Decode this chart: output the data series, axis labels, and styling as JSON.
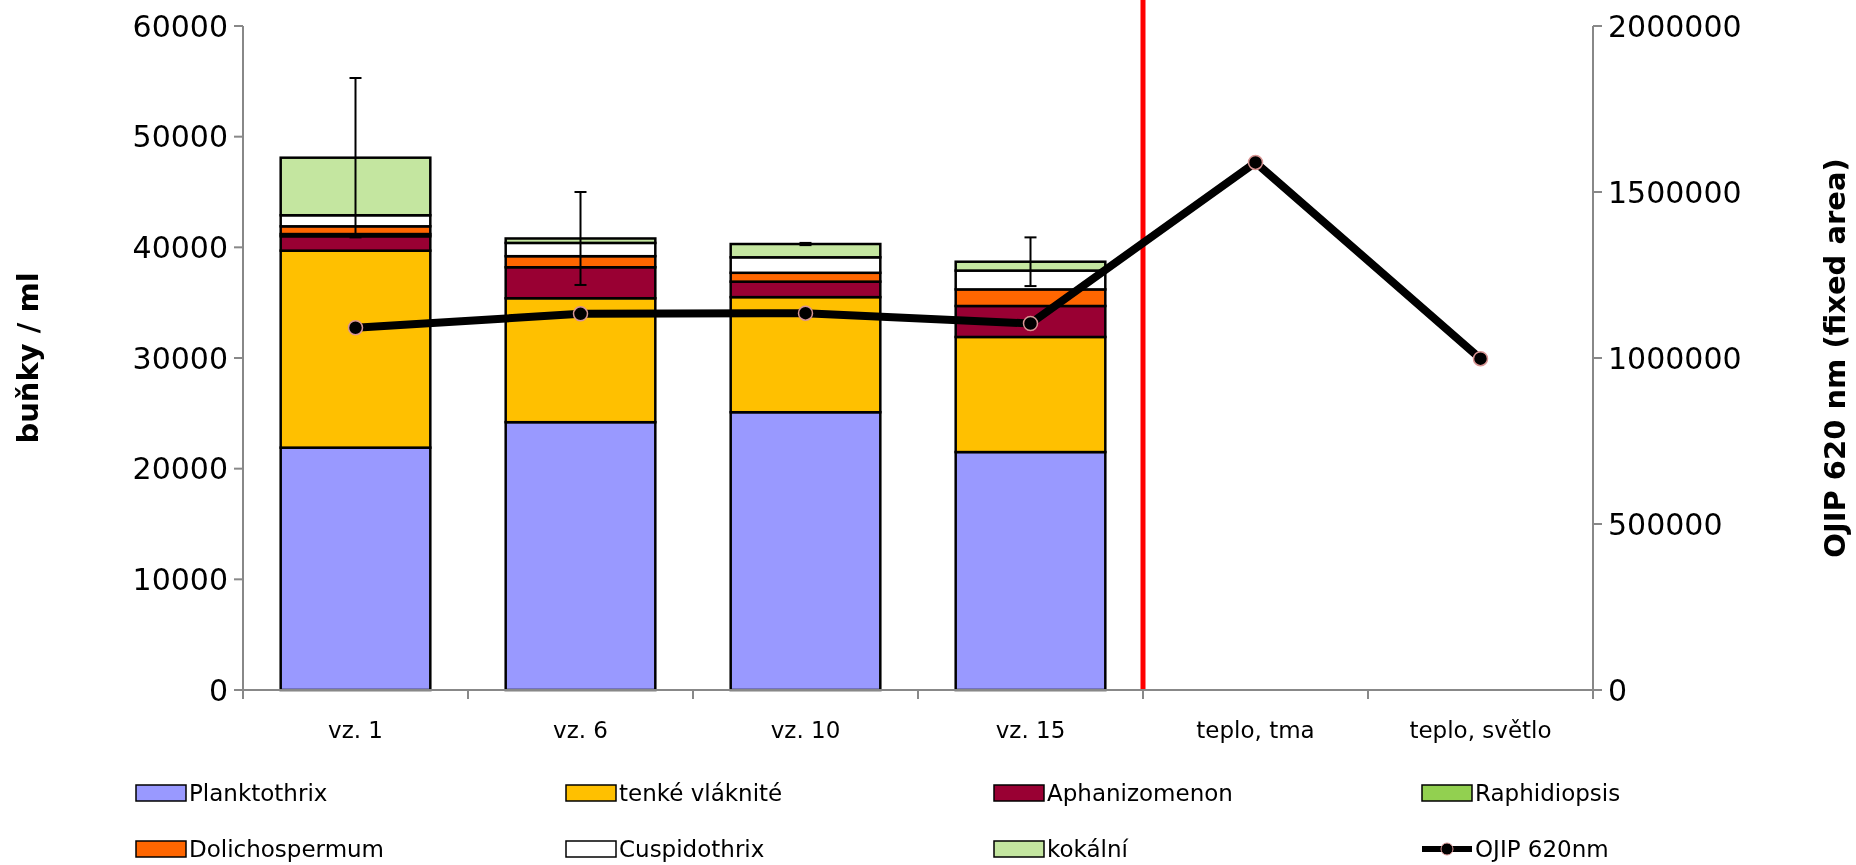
{
  "chart_data": {
    "type": "bar",
    "stacked": true,
    "ylabel": "buňky / ml",
    "y2label": "OJIP 620 nm (fixed area)",
    "categories": [
      "vz. 1",
      "vz. 6",
      "vz. 10",
      "vz. 15",
      "teplo, tma",
      "teplo, světlo"
    ],
    "ylim": [
      0,
      60000
    ],
    "yticks": [
      0,
      10000,
      20000,
      30000,
      40000,
      50000,
      60000
    ],
    "y2lim": [
      0,
      2000000
    ],
    "y2ticks": [
      0,
      500000,
      1000000,
      1500000,
      2000000
    ],
    "series": [
      {
        "name": "Planktothrix",
        "color": "#9999ff",
        "values": [
          21900,
          24200,
          25100,
          21500,
          null,
          null
        ]
      },
      {
        "name": "tenké vláknité",
        "color": "#ffc000",
        "values": [
          17800,
          11200,
          10400,
          10400,
          null,
          null
        ]
      },
      {
        "name": "Aphanizomenon",
        "color": "#990033",
        "values": [
          1300,
          2800,
          1400,
          2800,
          null,
          null
        ]
      },
      {
        "name": "Raphidiopsis",
        "color": "#92d050",
        "values": [
          200,
          0,
          0,
          0,
          null,
          null
        ]
      },
      {
        "name": "Dolichospermum",
        "color": "#ff6600",
        "values": [
          700,
          1000,
          800,
          1500,
          null,
          null
        ]
      },
      {
        "name": "Cuspidothrix",
        "color": "#ffffff",
        "values": [
          1000,
          1200,
          1400,
          1700,
          null,
          null
        ]
      },
      {
        "name": "kokální",
        "color": "#c4e6a0",
        "values": [
          5200,
          400,
          1200,
          800,
          null,
          null
        ],
        "errors": [
          7200,
          4200,
          100,
          2200,
          null,
          null
        ]
      },
      {
        "name": "OJIP 620nm",
        "type": "line",
        "axis": "y2",
        "color": "#000000",
        "marker": "circle",
        "values": [
          1091000,
          1133000,
          1135000,
          1104000,
          1589000,
          998000
        ]
      }
    ],
    "ref_lines": [
      {
        "axis": "x",
        "value": "teplo, tma",
        "color": "#ff0000"
      }
    ],
    "legend": "bottom",
    "grid": false
  }
}
